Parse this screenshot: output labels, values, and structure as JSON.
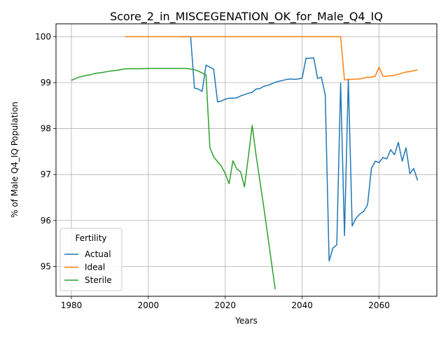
{
  "chart_data": {
    "type": "line",
    "title": "Score_2_in_MISCEGENATION_OK_for_Male_Q4_IQ",
    "xlabel": "Years",
    "ylabel": "% of Male Q4_IQ Population",
    "xlim": [
      1976,
      2075
    ],
    "ylim": [
      94.35,
      100.28
    ],
    "xticks": [
      1980,
      2000,
      2020,
      2040,
      2060
    ],
    "yticks": [
      95,
      96,
      97,
      98,
      99,
      100
    ],
    "grid": true,
    "legend": {
      "title": "Fertility",
      "position": "lower-left"
    },
    "series": [
      {
        "name": "Actual",
        "color": "#1f77b4",
        "x": [
          2008,
          2010,
          2011,
          2012,
          2013,
          2014,
          2015,
          2016,
          2017,
          2018,
          2019,
          2020,
          2021,
          2022,
          2023,
          2024,
          2025,
          2026,
          2027,
          2028,
          2029,
          2030,
          2031,
          2032,
          2033,
          2034,
          2035,
          2036,
          2037,
          2038,
          2039,
          2040,
          2041,
          2042,
          2043,
          2044,
          2045,
          2046,
          2047,
          2048,
          2049,
          2050,
          2051,
          2052,
          2053,
          2054,
          2055,
          2056,
          2057,
          2058,
          2059,
          2060,
          2061,
          2062,
          2063,
          2064,
          2065,
          2066,
          2067,
          2068,
          2069,
          2070
        ],
        "values": [
          100.0,
          100.0,
          100.0,
          98.88,
          98.86,
          98.81,
          99.38,
          99.34,
          99.29,
          98.58,
          98.6,
          98.64,
          98.66,
          98.66,
          98.67,
          98.71,
          98.74,
          98.77,
          98.79,
          98.86,
          98.87,
          98.92,
          98.94,
          98.97,
          99.01,
          99.03,
          99.05,
          99.07,
          99.08,
          99.07,
          99.08,
          99.1,
          99.53,
          99.53,
          99.54,
          99.09,
          99.12,
          98.73,
          95.12,
          95.4,
          95.47,
          98.99,
          95.67,
          99.08,
          95.88,
          96.05,
          96.14,
          96.2,
          96.34,
          97.13,
          97.29,
          97.26,
          97.37,
          97.34,
          97.54,
          97.43,
          97.7,
          97.29,
          97.58,
          97.02,
          97.13,
          96.87
        ]
      },
      {
        "name": "Ideal",
        "color": "#ff7f0e",
        "x": [
          1994,
          2000,
          2010,
          2020,
          2030,
          2040,
          2049,
          2050,
          2051,
          2052,
          2053,
          2054,
          2055,
          2056,
          2057,
          2058,
          2059,
          2060,
          2061,
          2062,
          2063,
          2064,
          2065,
          2066,
          2067,
          2068,
          2069,
          2070
        ],
        "values": [
          100.0,
          100.0,
          100.0,
          100.0,
          100.0,
          100.0,
          100.0,
          100.0,
          99.06,
          99.07,
          99.07,
          99.08,
          99.08,
          99.1,
          99.12,
          99.12,
          99.14,
          99.34,
          99.14,
          99.14,
          99.15,
          99.16,
          99.18,
          99.21,
          99.23,
          99.24,
          99.26,
          99.28
        ]
      },
      {
        "name": "Sterile",
        "color": "#2ca02c",
        "x": [
          1980,
          1982,
          1984,
          1985,
          1986,
          1988,
          1990,
          1992,
          1994,
          1997,
          2000,
          2005,
          2010,
          2012,
          2013,
          2015,
          2016,
          2017,
          2019,
          2020,
          2021,
          2022,
          2023,
          2024,
          2025,
          2026,
          2027,
          2028,
          2030,
          2033
        ],
        "values": [
          99.05,
          99.12,
          99.16,
          99.17,
          99.2,
          99.22,
          99.25,
          99.27,
          99.3,
          99.3,
          99.31,
          99.31,
          99.31,
          99.28,
          99.25,
          99.17,
          97.59,
          97.38,
          97.18,
          97.02,
          96.8,
          97.3,
          97.12,
          97.06,
          96.73,
          97.38,
          98.07,
          97.43,
          96.3,
          94.5
        ]
      }
    ]
  }
}
